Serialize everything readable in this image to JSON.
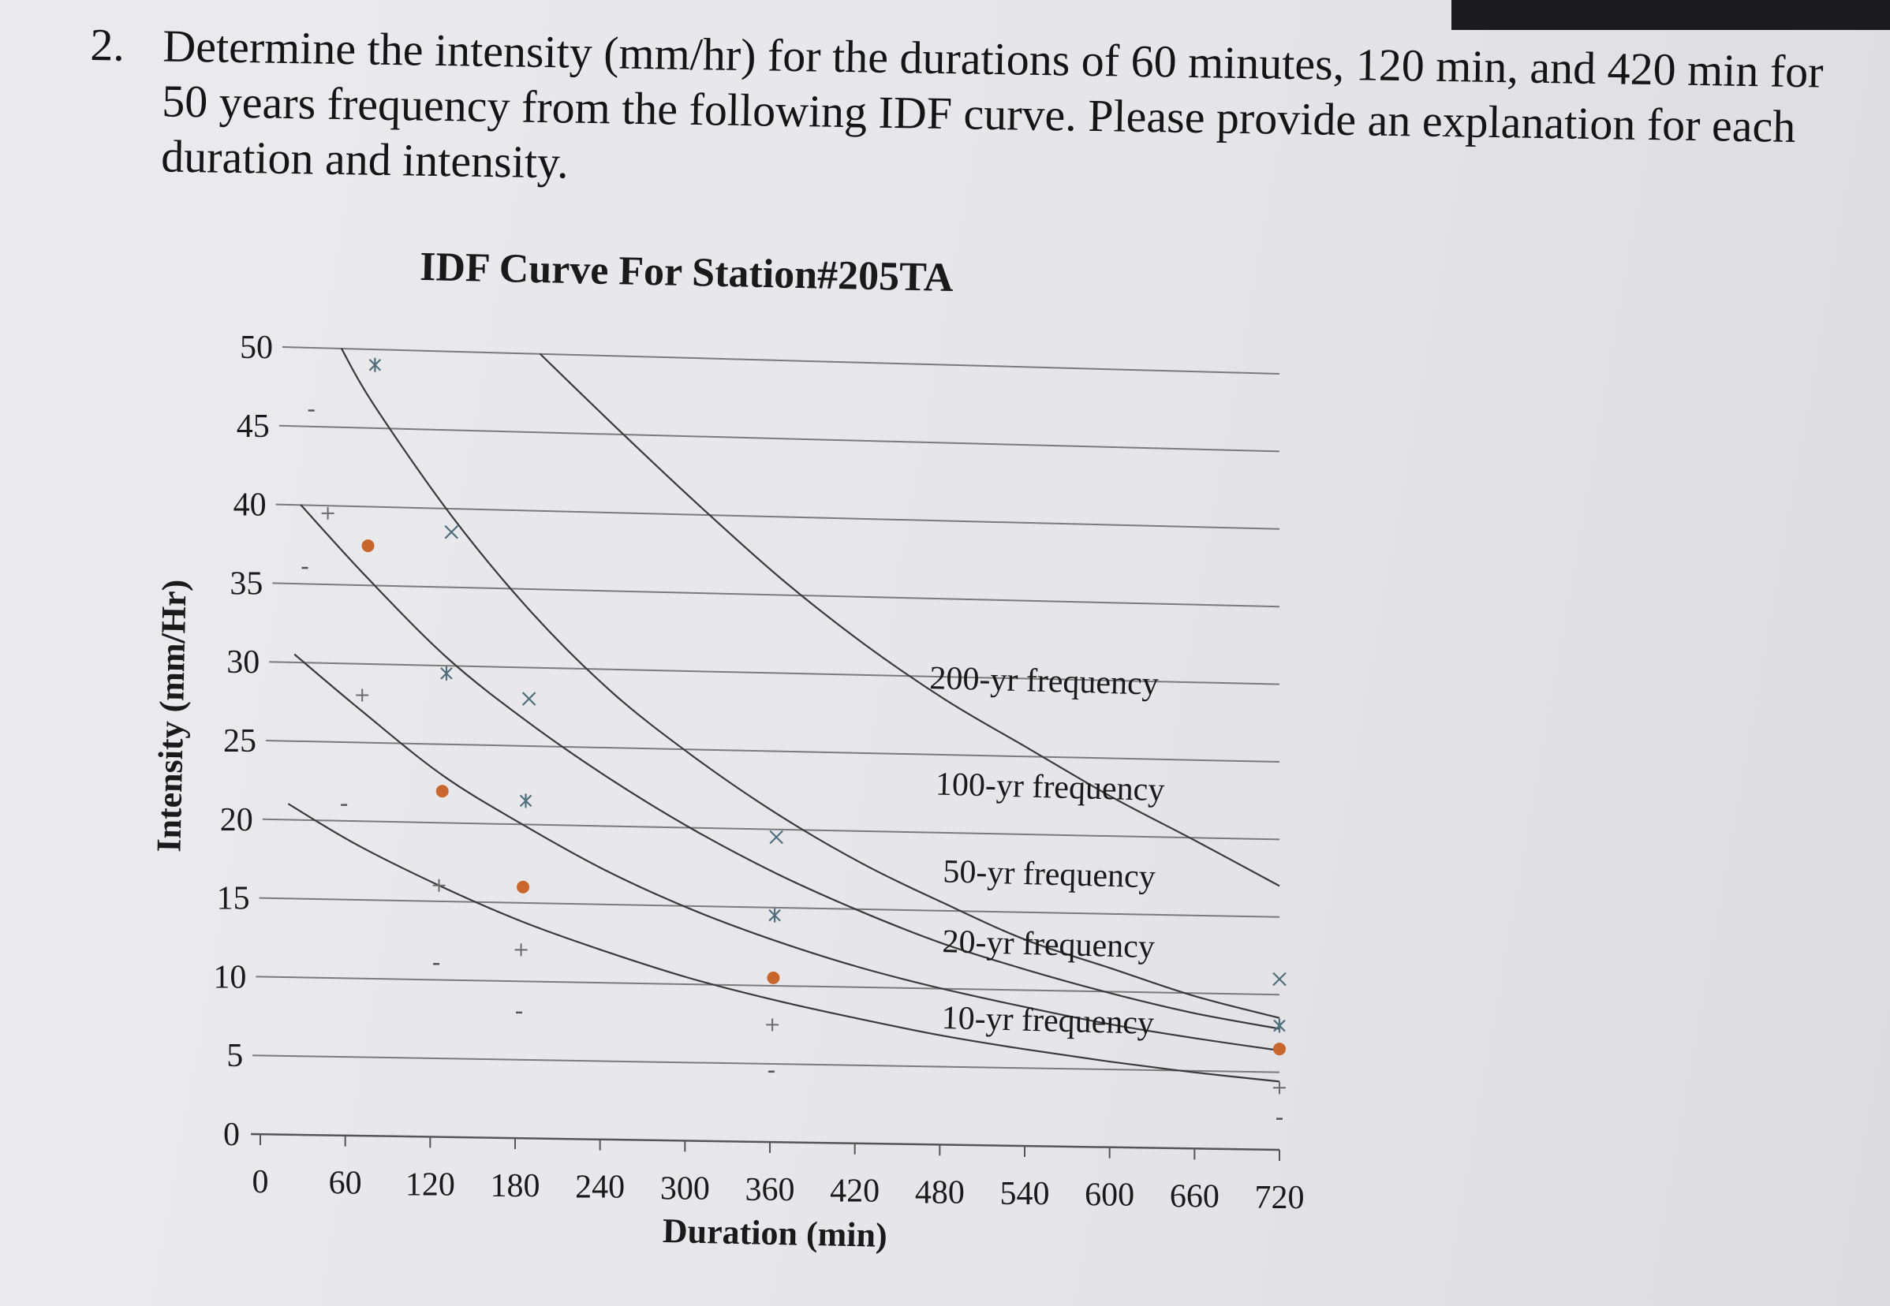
{
  "question": {
    "number": "2.",
    "text": "Determine the intensity (mm/hr) for the durations of 60 minutes, 120 min, and 420 min for 50 years frequency from the following IDF curve. Please provide an explanation for each duration and intensity."
  },
  "colors": {
    "curve": "#3a3a3a",
    "grid": "#7a7a7a",
    "marker_dot": "#c8662e",
    "marker_cross": "#4f6f7e",
    "text": "#1a1a1a",
    "background": "#e8e8ea"
  },
  "chart_data": {
    "type": "line",
    "title": "IDF Curve For Station#205TA",
    "xlabel": "Duration (min)",
    "ylabel": "Intensity (mm/Hr)",
    "xlim": [
      0,
      720
    ],
    "ylim": [
      0,
      50
    ],
    "x_ticks": [
      "0",
      "60",
      "120",
      "180",
      "240",
      "300",
      "360",
      "420",
      "480",
      "540",
      "600",
      "660",
      "720"
    ],
    "y_ticks": [
      "0",
      "5",
      "10",
      "15",
      "20",
      "25",
      "30",
      "35",
      "40",
      "45",
      "50"
    ],
    "grid": "horizontal",
    "legend": "inline labels",
    "series": [
      {
        "name": "200-yr frequency",
        "x": [
          180,
          240,
          300,
          360,
          420,
          480,
          540,
          600,
          660,
          720
        ],
        "y": [
          50,
          45.2,
          40.5,
          36,
          32,
          28.5,
          25.5,
          22.5,
          19.8,
          17
        ]
      },
      {
        "name": "100-yr frequency",
        "x": [
          35,
          60,
          120,
          180,
          240,
          300,
          360,
          420,
          480,
          540,
          600,
          660,
          720
        ],
        "y": [
          50,
          46.5,
          39.5,
          33.5,
          28.5,
          24.5,
          21,
          18,
          15.5,
          13.2,
          11.5,
          9.8,
          8.5
        ]
      },
      {
        "name": "50-yr frequency",
        "x": [
          10,
          60,
          120,
          180,
          240,
          300,
          360,
          420,
          480,
          540,
          600,
          660,
          720
        ],
        "y": [
          40,
          35.5,
          30.5,
          26.5,
          23,
          19.9,
          17.2,
          14.9,
          12.9,
          11.3,
          9.9,
          8.7,
          7.8
        ]
      },
      {
        "name": "20-yr frequency",
        "x": [
          10,
          60,
          120,
          180,
          240,
          300,
          360,
          420,
          480,
          540,
          600,
          660,
          720
        ],
        "y": [
          30.5,
          27,
          23,
          19.9,
          17.1,
          14.8,
          12.9,
          11.3,
          10,
          8.9,
          7.9,
          7.1,
          6.4
        ]
      },
      {
        "name": "10-yr frequency",
        "x": [
          10,
          60,
          120,
          180,
          240,
          300,
          360,
          420,
          480,
          540,
          600,
          660,
          720
        ],
        "y": [
          21,
          18.5,
          16,
          13.8,
          12,
          10.4,
          9.1,
          8,
          7,
          6.2,
          5.5,
          4.9,
          4.4
        ]
      }
    ],
    "markers": [
      {
        "type": "dot",
        "x": 60,
        "y": 37.5
      },
      {
        "type": "dot",
        "x": 120,
        "y": 22
      },
      {
        "type": "dot",
        "x": 180,
        "y": 16
      },
      {
        "type": "dot",
        "x": 360,
        "y": 10.5
      },
      {
        "type": "dot",
        "x": 720,
        "y": 6.5
      },
      {
        "type": "x",
        "x": 120,
        "y": 38.5
      },
      {
        "type": "x",
        "x": 180,
        "y": 28
      },
      {
        "type": "x",
        "x": 360,
        "y": 19.5
      },
      {
        "type": "x",
        "x": 720,
        "y": 11
      },
      {
        "type": "star",
        "x": 60,
        "y": 49
      },
      {
        "type": "star",
        "x": 120,
        "y": 29.5
      },
      {
        "type": "star",
        "x": 180,
        "y": 21.5
      },
      {
        "type": "star",
        "x": 360,
        "y": 14.5
      },
      {
        "type": "star",
        "x": 720,
        "y": 8
      },
      {
        "type": "plus",
        "x": 30,
        "y": 39.5
      },
      {
        "type": "plus",
        "x": 60,
        "y": 28
      },
      {
        "type": "plus",
        "x": 120,
        "y": 16
      },
      {
        "type": "plus",
        "x": 180,
        "y": 12
      },
      {
        "type": "plus",
        "x": 360,
        "y": 7.5
      },
      {
        "type": "plus",
        "x": 720,
        "y": 4
      },
      {
        "type": "dash",
        "x": 15,
        "y": 46
      },
      {
        "type": "dash",
        "x": 15,
        "y": 36
      },
      {
        "type": "dash",
        "x": 50,
        "y": 21
      },
      {
        "type": "dash",
        "x": 120,
        "y": 11
      },
      {
        "type": "dash",
        "x": 180,
        "y": 8
      },
      {
        "type": "dash",
        "x": 360,
        "y": 4.5
      },
      {
        "type": "dash",
        "x": 720,
        "y": 2
      }
    ]
  }
}
